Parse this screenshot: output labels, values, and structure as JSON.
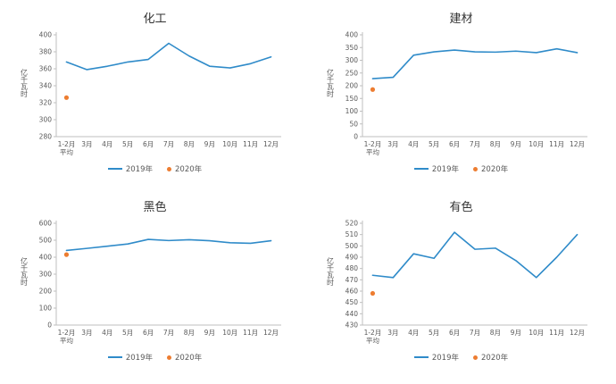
{
  "colors": {
    "line_2019": "#2f8bc9",
    "dot_2020": "#ED7D31",
    "axis": "#bfbfbf",
    "tick_text": "#595959",
    "title_text": "#333333"
  },
  "legend": {
    "s2019": "2019年",
    "s2020": "2020年"
  },
  "chart_data": [
    {
      "type": "line",
      "title": "化工",
      "ylabel": "亿千瓦时",
      "ylim": [
        280,
        400
      ],
      "ystep": 20,
      "grid": false,
      "legend_position": "bottom",
      "categories": [
        "1-2月\n平均",
        "3月",
        "4月",
        "5月",
        "6月",
        "7月",
        "8月",
        "9月",
        "10月",
        "11月",
        "12月"
      ],
      "series": [
        {
          "name": "2019年",
          "values": [
            368,
            359,
            363,
            368,
            371,
            390,
            375,
            363,
            361,
            366,
            374
          ]
        },
        {
          "name": "2020年",
          "values": [
            326,
            null,
            null,
            null,
            null,
            null,
            null,
            null,
            null,
            null,
            null
          ]
        }
      ]
    },
    {
      "type": "line",
      "title": "建材",
      "ylabel": "亿千瓦时",
      "ylim": [
        0,
        400
      ],
      "ystep": 50,
      "grid": false,
      "legend_position": "bottom",
      "categories": [
        "1-2月\n平均",
        "3月",
        "4月",
        "5月",
        "6月",
        "7月",
        "8月",
        "9月",
        "10月",
        "11月",
        "12月"
      ],
      "series": [
        {
          "name": "2019年",
          "values": [
            228,
            233,
            320,
            333,
            340,
            333,
            332,
            336,
            330,
            345,
            330
          ]
        },
        {
          "name": "2020年",
          "values": [
            185,
            null,
            null,
            null,
            null,
            null,
            null,
            null,
            null,
            null,
            null
          ]
        }
      ]
    },
    {
      "type": "line",
      "title": "黑色",
      "ylabel": "亿千瓦时",
      "ylim": [
        0,
        600
      ],
      "ystep": 100,
      "grid": false,
      "legend_position": "bottom",
      "categories": [
        "1-2月\n平均",
        "3月",
        "4月",
        "5月",
        "6月",
        "7月",
        "8月",
        "9月",
        "10月",
        "11月",
        "12月"
      ],
      "series": [
        {
          "name": "2019年",
          "values": [
            440,
            452,
            465,
            478,
            505,
            498,
            503,
            497,
            485,
            482,
            497
          ]
        },
        {
          "name": "2020年",
          "values": [
            415,
            null,
            null,
            null,
            null,
            null,
            null,
            null,
            null,
            null,
            null
          ]
        }
      ]
    },
    {
      "type": "line",
      "title": "有色",
      "ylabel": "亿千瓦时",
      "ylim": [
        430,
        520
      ],
      "ystep": 10,
      "grid": false,
      "legend_position": "bottom",
      "categories": [
        "1-2月\n平均",
        "3月",
        "4月",
        "5月",
        "6月",
        "7月",
        "8月",
        "9月",
        "10月",
        "11月",
        "12月"
      ],
      "series": [
        {
          "name": "2019年",
          "values": [
            474,
            472,
            493,
            489,
            512,
            497,
            498,
            487,
            472,
            490,
            510
          ]
        },
        {
          "name": "2020年",
          "values": [
            458,
            null,
            null,
            null,
            null,
            null,
            null,
            null,
            null,
            null,
            null
          ]
        }
      ]
    }
  ]
}
